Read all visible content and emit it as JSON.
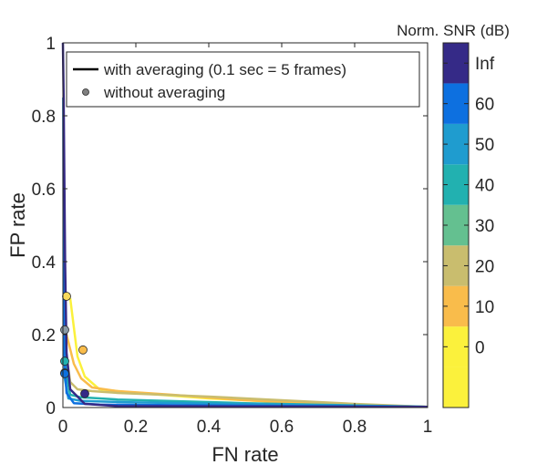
{
  "chart_data": {
    "type": "line",
    "xlabel": "FN rate",
    "ylabel": "FP rate",
    "xlim": [
      0,
      1
    ],
    "ylim": [
      0,
      1
    ],
    "x_ticks": [
      "0",
      "0.2",
      "0.4",
      "0.6",
      "0.8",
      "1"
    ],
    "y_ticks": [
      "0",
      "0.2",
      "0.4",
      "0.6",
      "0.8",
      "1"
    ],
    "grid": false,
    "legend": {
      "placement": "top-left",
      "entries": [
        {
          "label": "with averaging (0.1 sec = 5 frames)",
          "marker": "line",
          "color": "#000000"
        },
        {
          "label": "without averaging",
          "marker": "circle",
          "color": "#808080"
        }
      ]
    },
    "colorbar": {
      "title": "Norm. SNR (dB)",
      "levels": [
        {
          "label": "",
          "color": "#fbf13c"
        },
        {
          "label": "0",
          "color": "#fbf13c"
        },
        {
          "label": "10",
          "color": "#f9bc4b"
        },
        {
          "label": "20",
          "color": "#c9bd6e"
        },
        {
          "label": "30",
          "color": "#64c090"
        },
        {
          "label": "40",
          "color": "#22b1b0"
        },
        {
          "label": "50",
          "color": "#1f9ccf"
        },
        {
          "label": "60",
          "color": "#0d70e0"
        },
        {
          "label": "Inf",
          "color": "#352a87"
        }
      ]
    },
    "series": [
      {
        "color": "#fbf13c",
        "x": [
          0.02,
          0.04,
          0.06,
          0.1,
          0.2,
          0.4,
          0.6,
          0.8,
          1.0
        ],
        "y": [
          0.3,
          0.14,
          0.085,
          0.05,
          0.04,
          0.025,
          0.015,
          0.008,
          0.002
        ]
      },
      {
        "color": "#f9bc4b",
        "x": [
          0.01,
          0.03,
          0.05,
          0.08,
          0.15,
          0.3,
          0.5,
          0.7,
          1.0
        ],
        "y": [
          0.2,
          0.12,
          0.08,
          0.055,
          0.045,
          0.035,
          0.02,
          0.01,
          0.002
        ]
      },
      {
        "color": "#c9bd6e",
        "x": [
          0.005,
          0.02,
          0.04,
          0.08,
          0.15,
          0.4,
          0.6,
          0.8,
          1.0
        ],
        "y": [
          0.18,
          0.07,
          0.05,
          0.045,
          0.04,
          0.03,
          0.02,
          0.01,
          0.002
        ]
      },
      {
        "color": "#22b1b0",
        "x": [
          0.003,
          0.008,
          0.02,
          0.05,
          0.15,
          0.5,
          1.0
        ],
        "y": [
          0.6,
          0.1,
          0.035,
          0.028,
          0.022,
          0.012,
          0.002
        ]
      },
      {
        "color": "#1f9ccf",
        "x": [
          0.002,
          0.005,
          0.015,
          0.05,
          0.2,
          0.6,
          1.0
        ],
        "y": [
          0.7,
          0.08,
          0.025,
          0.018,
          0.014,
          0.008,
          0.002
        ]
      },
      {
        "color": "#0d70e0",
        "x": [
          0.001,
          0.003,
          0.01,
          0.03,
          0.1,
          0.5,
          1.0
        ],
        "y": [
          0.85,
          0.15,
          0.04,
          0.012,
          0.008,
          0.005,
          0.002
        ]
      },
      {
        "color": "#352a87",
        "x": [
          0.0,
          0.002,
          0.006,
          0.01,
          0.02,
          0.06,
          0.15,
          0.5,
          1.0
        ],
        "y": [
          1.0,
          0.85,
          0.4,
          0.15,
          0.05,
          0.01,
          0.004,
          0.003,
          0.002
        ]
      }
    ],
    "points": [
      {
        "x": 0.01,
        "y": 0.305,
        "color": "#f8d95a"
      },
      {
        "x": 0.055,
        "y": 0.158,
        "color": "#f9bc4b"
      },
      {
        "x": 0.005,
        "y": 0.213,
        "color": "#8a9aa6"
      },
      {
        "x": 0.005,
        "y": 0.127,
        "color": "#22b1b0"
      },
      {
        "x": 0.005,
        "y": 0.095,
        "color": "#1f9ccf"
      },
      {
        "x": 0.005,
        "y": 0.093,
        "color": "#0d70e0"
      },
      {
        "x": 0.06,
        "y": 0.038,
        "color": "#352a87"
      }
    ]
  }
}
